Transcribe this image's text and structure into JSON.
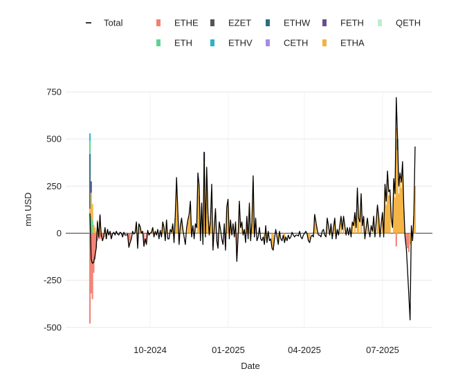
{
  "chart_data": {
    "type": "bar",
    "xlabel": "Date",
    "ylabel": "mn USD",
    "ylim": [
      -550,
      800
    ],
    "yticks": [
      -500,
      -250,
      0,
      250,
      500,
      750
    ],
    "xticks": [
      "10-2024",
      "01-2025",
      "04-2025",
      "07-2025"
    ],
    "grid": true,
    "legend_position": "top",
    "series": [
      {
        "name": "Total",
        "kind": "line",
        "color": "#000000"
      },
      {
        "name": "ETHE",
        "color": "#F28072"
      },
      {
        "name": "EZET",
        "color": "#555555"
      },
      {
        "name": "ETHW",
        "color": "#2C6E7E"
      },
      {
        "name": "FETH",
        "color": "#6A4C93"
      },
      {
        "name": "QETH",
        "color": "#B9EFD2"
      },
      {
        "name": "ETH",
        "color": "#5FD38E"
      },
      {
        "name": "ETHV",
        "color": "#2AB3C6"
      },
      {
        "name": "CETH",
        "color": "#A98AE2"
      },
      {
        "name": "ETHA",
        "color": "#F4B23E"
      }
    ],
    "total_flow": [
      [
        0,
        105
      ],
      [
        1,
        -140
      ],
      [
        2,
        -160
      ],
      [
        3,
        -155
      ],
      [
        4,
        -120
      ],
      [
        5,
        -80
      ],
      [
        6,
        60
      ],
      [
        7,
        -20
      ],
      [
        8,
        90
      ],
      [
        9,
        -10
      ],
      [
        10,
        -40
      ],
      [
        11,
        -20
      ],
      [
        12,
        30
      ],
      [
        13,
        -30
      ],
      [
        14,
        20
      ],
      [
        15,
        -10
      ],
      [
        16,
        10
      ],
      [
        17,
        -30
      ],
      [
        18,
        -5
      ],
      [
        19,
        5
      ],
      [
        20,
        -10
      ],
      [
        21,
        10
      ],
      [
        22,
        -5
      ],
      [
        23,
        -10
      ],
      [
        24,
        5
      ],
      [
        25,
        0
      ],
      [
        26,
        -20
      ],
      [
        27,
        5
      ],
      [
        28,
        -10
      ],
      [
        29,
        -10
      ],
      [
        30,
        -5
      ],
      [
        31,
        -75
      ],
      [
        32,
        -50
      ],
      [
        33,
        -30
      ],
      [
        34,
        10
      ],
      [
        35,
        -5
      ],
      [
        36,
        5
      ],
      [
        37,
        60
      ],
      [
        38,
        -80
      ],
      [
        39,
        50
      ],
      [
        40,
        35
      ],
      [
        41,
        0
      ],
      [
        42,
        10
      ],
      [
        43,
        -70
      ],
      [
        44,
        -30
      ],
      [
        45,
        -60
      ],
      [
        46,
        15
      ],
      [
        47,
        -10
      ],
      [
        48,
        0
      ],
      [
        49,
        5
      ],
      [
        50,
        30
      ],
      [
        51,
        -20
      ],
      [
        52,
        10
      ],
      [
        53,
        -10
      ],
      [
        54,
        20
      ],
      [
        55,
        -30
      ],
      [
        56,
        15
      ],
      [
        57,
        -20
      ],
      [
        58,
        60
      ],
      [
        59,
        30
      ],
      [
        60,
        -40
      ],
      [
        61,
        70
      ],
      [
        62,
        -30
      ],
      [
        63,
        -30
      ],
      [
        64,
        20
      ],
      [
        65,
        5
      ],
      [
        66,
        50
      ],
      [
        67,
        -50
      ],
      [
        68,
        100
      ],
      [
        69,
        295
      ],
      [
        70,
        120
      ],
      [
        71,
        -60
      ],
      [
        72,
        40
      ],
      [
        73,
        80
      ],
      [
        74,
        20
      ],
      [
        75,
        -20
      ],
      [
        76,
        -60
      ],
      [
        77,
        30
      ],
      [
        78,
        70
      ],
      [
        79,
        100
      ],
      [
        80,
        170
      ],
      [
        81,
        -20
      ],
      [
        82,
        40
      ],
      [
        83,
        -30
      ],
      [
        84,
        50
      ],
      [
        85,
        30
      ],
      [
        86,
        320
      ],
      [
        87,
        250
      ],
      [
        88,
        -40
      ],
      [
        89,
        160
      ],
      [
        90,
        -60
      ],
      [
        91,
        430
      ],
      [
        92,
        -20
      ],
      [
        93,
        350
      ],
      [
        94,
        110
      ],
      [
        95,
        -10
      ],
      [
        96,
        70
      ],
      [
        97,
        260
      ],
      [
        98,
        -90
      ],
      [
        99,
        30
      ],
      [
        100,
        130
      ],
      [
        101,
        -40
      ],
      [
        102,
        -80
      ],
      [
        103,
        60
      ],
      [
        104,
        20
      ],
      [
        105,
        -30
      ],
      [
        106,
        -60
      ],
      [
        107,
        50
      ],
      [
        108,
        -90
      ],
      [
        109,
        140
      ],
      [
        110,
        180
      ],
      [
        111,
        -30
      ],
      [
        112,
        70
      ],
      [
        113,
        -10
      ],
      [
        114,
        50
      ],
      [
        115,
        -20
      ],
      [
        116,
        60
      ],
      [
        117,
        -150
      ],
      [
        118,
        -20
      ],
      [
        119,
        170
      ],
      [
        120,
        30
      ],
      [
        121,
        60
      ],
      [
        122,
        -10
      ],
      [
        123,
        20
      ],
      [
        124,
        -50
      ],
      [
        125,
        90
      ],
      [
        126,
        -30
      ],
      [
        127,
        160
      ],
      [
        128,
        -40
      ],
      [
        129,
        60
      ],
      [
        130,
        305
      ],
      [
        131,
        -20
      ],
      [
        132,
        80
      ],
      [
        133,
        -40
      ],
      [
        134,
        -20
      ],
      [
        135,
        30
      ],
      [
        136,
        -30
      ],
      [
        137,
        -40
      ],
      [
        138,
        -20
      ],
      [
        139,
        -60
      ],
      [
        140,
        40
      ],
      [
        141,
        -50
      ],
      [
        142,
        10
      ],
      [
        143,
        -40
      ],
      [
        144,
        -30
      ],
      [
        145,
        -80
      ],
      [
        146,
        -90
      ],
      [
        147,
        -30
      ],
      [
        148,
        20
      ],
      [
        149,
        -20
      ],
      [
        150,
        -60
      ],
      [
        151,
        10
      ],
      [
        152,
        -30
      ],
      [
        153,
        -40
      ],
      [
        154,
        -10
      ],
      [
        155,
        -50
      ],
      [
        156,
        -20
      ],
      [
        157,
        -40
      ],
      [
        158,
        -10
      ],
      [
        159,
        -30
      ],
      [
        160,
        -20
      ],
      [
        161,
        5
      ],
      [
        162,
        -10
      ],
      [
        163,
        -20
      ],
      [
        164,
        -10
      ],
      [
        165,
        -10
      ],
      [
        166,
        -15
      ],
      [
        167,
        10
      ],
      [
        168,
        -20
      ],
      [
        169,
        -30
      ],
      [
        170,
        -10
      ],
      [
        171,
        0
      ],
      [
        172,
        10
      ],
      [
        173,
        -5
      ],
      [
        174,
        -40
      ],
      [
        175,
        -50
      ],
      [
        176,
        -20
      ],
      [
        177,
        -10
      ],
      [
        178,
        -20
      ],
      [
        179,
        100
      ],
      [
        180,
        60
      ],
      [
        181,
        20
      ],
      [
        182,
        -10
      ],
      [
        183,
        -10
      ],
      [
        184,
        -20
      ],
      [
        185,
        10
      ],
      [
        186,
        20
      ],
      [
        187,
        -10
      ],
      [
        188,
        -20
      ],
      [
        189,
        80
      ],
      [
        190,
        40
      ],
      [
        191,
        -10
      ],
      [
        192,
        50
      ],
      [
        193,
        -30
      ],
      [
        194,
        30
      ],
      [
        195,
        80
      ],
      [
        196,
        -30
      ],
      [
        197,
        20
      ],
      [
        198,
        -10
      ],
      [
        199,
        40
      ],
      [
        200,
        90
      ],
      [
        201,
        20
      ],
      [
        202,
        90
      ],
      [
        203,
        40
      ],
      [
        204,
        -10
      ],
      [
        205,
        30
      ],
      [
        206,
        -10
      ],
      [
        207,
        30
      ],
      [
        208,
        -20
      ],
      [
        209,
        60
      ],
      [
        210,
        40
      ],
      [
        211,
        110
      ],
      [
        212,
        30
      ],
      [
        213,
        240
      ],
      [
        214,
        80
      ],
      [
        215,
        60
      ],
      [
        216,
        210
      ],
      [
        217,
        40
      ],
      [
        218,
        90
      ],
      [
        219,
        -30
      ],
      [
        220,
        30
      ],
      [
        221,
        80
      ],
      [
        222,
        20
      ],
      [
        223,
        -20
      ],
      [
        224,
        40
      ],
      [
        225,
        10
      ],
      [
        226,
        90
      ],
      [
        227,
        -20
      ],
      [
        228,
        60
      ],
      [
        229,
        150
      ],
      [
        230,
        90
      ],
      [
        231,
        -20
      ],
      [
        232,
        50
      ],
      [
        233,
        110
      ],
      [
        234,
        -20
      ],
      [
        235,
        260
      ],
      [
        236,
        170
      ],
      [
        237,
        330
      ],
      [
        238,
        220
      ],
      [
        239,
        230
      ],
      [
        240,
        80
      ],
      [
        241,
        30
      ],
      [
        242,
        290
      ],
      [
        243,
        210
      ],
      [
        244,
        720
      ],
      [
        245,
        510
      ],
      [
        246,
        250
      ],
      [
        247,
        320
      ],
      [
        248,
        270
      ],
      [
        249,
        380
      ],
      [
        250,
        140
      ],
      [
        251,
        -20
      ],
      [
        252,
        -80
      ],
      [
        253,
        -200
      ],
      [
        254,
        -330
      ],
      [
        255,
        -460
      ],
      [
        256,
        40
      ],
      [
        257,
        -40
      ],
      [
        258,
        100
      ],
      [
        259,
        460
      ]
    ],
    "bars": [
      [
        0,
        "ETHA",
        130
      ],
      [
        0,
        "ETHE",
        -480
      ],
      [
        0,
        "ETHW",
        290
      ],
      [
        0,
        "ETH",
        70
      ],
      [
        0,
        "ETHV",
        40
      ],
      [
        1,
        "ETHE",
        -320
      ],
      [
        1,
        "ETH",
        95
      ],
      [
        1,
        "ETHA",
        120
      ],
      [
        1,
        "FETH",
        60
      ],
      [
        2,
        "ETHE",
        -350
      ],
      [
        2,
        "ETH",
        70
      ],
      [
        2,
        "ETHA",
        85
      ],
      [
        3,
        "ETHE",
        -210
      ],
      [
        3,
        "ETHA",
        45
      ],
      [
        4,
        "ETHE",
        -140
      ],
      [
        4,
        "ETHA",
        30
      ],
      [
        5,
        "ETHE",
        -80
      ],
      [
        5,
        "ETHA",
        10
      ],
      [
        6,
        "ETHA",
        70
      ],
      [
        6,
        "ETHE",
        -40
      ],
      [
        7,
        "ETHA",
        20
      ],
      [
        7,
        "ETHE",
        -30
      ],
      [
        8,
        "ETHA",
        60
      ],
      [
        8,
        "FETH",
        40
      ],
      [
        8,
        "ETHE",
        -30
      ],
      [
        9,
        "ETHA",
        10
      ],
      [
        9,
        "ETHE",
        -20
      ],
      [
        10,
        "ETHE",
        -40
      ],
      [
        11,
        "ETHE",
        -20
      ],
      [
        12,
        "ETHA",
        20
      ],
      [
        13,
        "ETHE",
        -30
      ],
      [
        14,
        "ETHA",
        15
      ],
      [
        16,
        "ETHA",
        10
      ],
      [
        17,
        "ETHE",
        -25
      ],
      [
        21,
        "ETHA",
        10
      ],
      [
        24,
        "ETHA",
        5
      ],
      [
        26,
        "ETHE",
        -15
      ],
      [
        31,
        "ETHE",
        -60
      ],
      [
        32,
        "ETHE",
        -40
      ],
      [
        37,
        "ETHA",
        50
      ],
      [
        38,
        "ETHE",
        -60
      ],
      [
        39,
        "ETHA",
        40
      ],
      [
        40,
        "ETHA",
        30
      ],
      [
        43,
        "ETHE",
        -50
      ],
      [
        45,
        "ETHE",
        -40
      ],
      [
        50,
        "ETHA",
        25
      ],
      [
        54,
        "ETHA",
        15
      ],
      [
        58,
        "ETHA",
        50
      ],
      [
        59,
        "ETHA",
        25
      ],
      [
        61,
        "ETHA",
        60
      ],
      [
        66,
        "ETHA",
        40
      ],
      [
        68,
        "ETHA",
        80
      ],
      [
        69,
        "ETHA",
        220
      ],
      [
        70,
        "ETHA",
        100
      ],
      [
        71,
        "ETHE",
        -40
      ],
      [
        73,
        "ETHA",
        70
      ],
      [
        78,
        "ETHA",
        60
      ],
      [
        79,
        "ETHA",
        90
      ],
      [
        80,
        "ETHA",
        150
      ],
      [
        84,
        "ETHA",
        40
      ],
      [
        86,
        "ETHA",
        260
      ],
      [
        87,
        "ETHA",
        200
      ],
      [
        89,
        "ETHA",
        140
      ],
      [
        91,
        "ETHA",
        380
      ],
      [
        91,
        "FETH",
        50
      ],
      [
        93,
        "ETHA",
        300
      ],
      [
        94,
        "ETHA",
        90
      ],
      [
        96,
        "ETHA",
        60
      ],
      [
        97,
        "ETHA",
        220
      ],
      [
        98,
        "ETHE",
        -70
      ],
      [
        100,
        "ETHA",
        110
      ],
      [
        102,
        "ETHE",
        -60
      ],
      [
        103,
        "ETHA",
        50
      ],
      [
        108,
        "ETHE",
        -70
      ],
      [
        109,
        "ETHA",
        120
      ],
      [
        110,
        "ETHA",
        150
      ],
      [
        112,
        "ETHA",
        60
      ],
      [
        116,
        "ETHA",
        50
      ],
      [
        117,
        "ETHE",
        -120
      ],
      [
        119,
        "ETHA",
        150
      ],
      [
        121,
        "ETHA",
        50
      ],
      [
        125,
        "ETHA",
        80
      ],
      [
        127,
        "ETHA",
        140
      ],
      [
        129,
        "ETHA",
        50
      ],
      [
        130,
        "ETHA",
        270
      ],
      [
        132,
        "ETHA",
        70
      ],
      [
        139,
        "ETHA",
        -50
      ],
      [
        141,
        "ETHA",
        -40
      ],
      [
        145,
        "ETHA",
        -70
      ],
      [
        146,
        "ETHA",
        -80
      ],
      [
        150,
        "ETHA",
        -50
      ],
      [
        155,
        "ETHA",
        -40
      ],
      [
        174,
        "ETHA",
        -30
      ],
      [
        175,
        "ETHA",
        -40
      ],
      [
        179,
        "ETHA",
        90
      ],
      [
        180,
        "ETHA",
        50
      ],
      [
        189,
        "ETHA",
        70
      ],
      [
        192,
        "ETHA",
        40
      ],
      [
        195,
        "ETHA",
        70
      ],
      [
        200,
        "ETHA",
        80
      ],
      [
        202,
        "ETHA",
        80
      ],
      [
        209,
        "ETHA",
        50
      ],
      [
        211,
        "ETHA",
        90
      ],
      [
        213,
        "ETHA",
        200
      ],
      [
        214,
        "ETHA",
        70
      ],
      [
        216,
        "ETHA",
        180
      ],
      [
        218,
        "ETHA",
        80
      ],
      [
        221,
        "ETHA",
        70
      ],
      [
        226,
        "ETHA",
        80
      ],
      [
        229,
        "ETHA",
        130
      ],
      [
        230,
        "ETHA",
        80
      ],
      [
        233,
        "ETHA",
        100
      ],
      [
        235,
        "ETHA",
        230
      ],
      [
        236,
        "ETHA",
        150
      ],
      [
        237,
        "ETHA",
        290
      ],
      [
        238,
        "ETHA",
        200
      ],
      [
        239,
        "ETHA",
        200
      ],
      [
        242,
        "ETHA",
        260
      ],
      [
        243,
        "ETHA",
        190
      ],
      [
        244,
        "ETHA",
        560
      ],
      [
        244,
        "ETHE",
        -70
      ],
      [
        245,
        "ETHA",
        440
      ],
      [
        245,
        "ETHW",
        60
      ],
      [
        246,
        "ETHA",
        210
      ],
      [
        247,
        "ETHA",
        280
      ],
      [
        248,
        "ETHA",
        240
      ],
      [
        249,
        "ETHA",
        330
      ],
      [
        250,
        "ETHA",
        120
      ],
      [
        252,
        "ETHE",
        -60
      ],
      [
        253,
        "ETHE",
        -80
      ],
      [
        254,
        "ETHE",
        -100
      ],
      [
        255,
        "ETHA",
        -60
      ],
      [
        258,
        "ETHA",
        90
      ],
      [
        259,
        "ETHA",
        250
      ]
    ]
  }
}
